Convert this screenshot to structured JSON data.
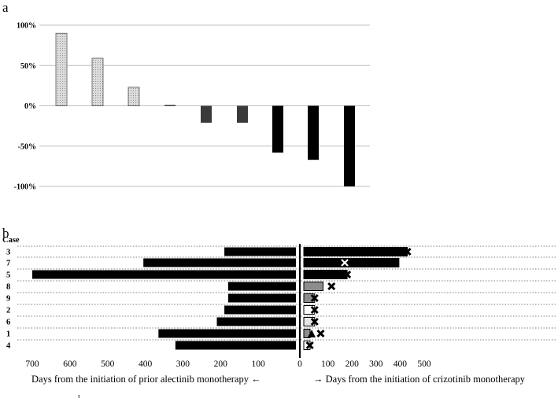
{
  "figure": {
    "panel_a_label": "a",
    "panel_b_label": "b",
    "stray_mark": "ɩ"
  },
  "chart_data": [
    {
      "type": "bar",
      "panel": "a",
      "y_tick_labels": [
        "100%",
        "50%",
        "0%",
        "-50%",
        "-100%"
      ],
      "y_ticks": [
        100,
        50,
        0,
        -50,
        -100
      ],
      "ylim": [
        -100,
        100
      ],
      "grid": true,
      "values": [
        90,
        59,
        23,
        1,
        -21,
        -21,
        -58,
        -67,
        -100
      ],
      "bar_styles": [
        "dotted",
        "dotted",
        "dotted",
        "dark",
        "dark",
        "dark",
        "black",
        "black",
        "black"
      ],
      "colors": {
        "dotted_fill": "#dcdcdc",
        "dark_fill": "#3a3a3a",
        "black_fill": "#000000",
        "grid": "#bfbfbf"
      }
    },
    {
      "type": "bar",
      "panel": "b",
      "orientation": "horizontal",
      "case_header": "Case",
      "cases": [
        "3",
        "7",
        "5",
        "8",
        "9",
        "2",
        "6",
        "1",
        "4"
      ],
      "alectinib_days": [
        190,
        405,
        700,
        180,
        180,
        190,
        210,
        365,
        320
      ],
      "crizotinib_days": [
        430,
        395,
        180,
        80,
        45,
        45,
        45,
        20,
        20
      ],
      "crizotinib_styles": [
        "black",
        "black",
        "black",
        "gray",
        "gray",
        "white",
        "light",
        "gray",
        "white"
      ],
      "x_mark_days": [
        430,
        170,
        180,
        115,
        45,
        45,
        45,
        70,
        25
      ],
      "x_mark_style": [
        "inside",
        "outline",
        "inside",
        "outside",
        "outside",
        "outside",
        "outside",
        "outside",
        "outside"
      ],
      "triangle_case": "1",
      "left_ticks": [
        "700",
        "600",
        "500",
        "400",
        "300",
        "200",
        "100",
        "0"
      ],
      "left_tick_values": [
        700,
        600,
        500,
        400,
        300,
        200,
        100,
        0
      ],
      "right_ticks": [
        "100",
        "200",
        "300",
        "400",
        "500"
      ],
      "right_tick_values": [
        100,
        200,
        300,
        400,
        500
      ],
      "left_xlabel": "Days from the initiation of prior alectinib monotherapy ←",
      "right_xlabel": "→ Days from the initiation of crizotinib monotherapy",
      "colors": {
        "black": "#000000",
        "gray": "#8c8c8c",
        "light": "#e6e6e6",
        "white": "#ffffff"
      }
    }
  ]
}
